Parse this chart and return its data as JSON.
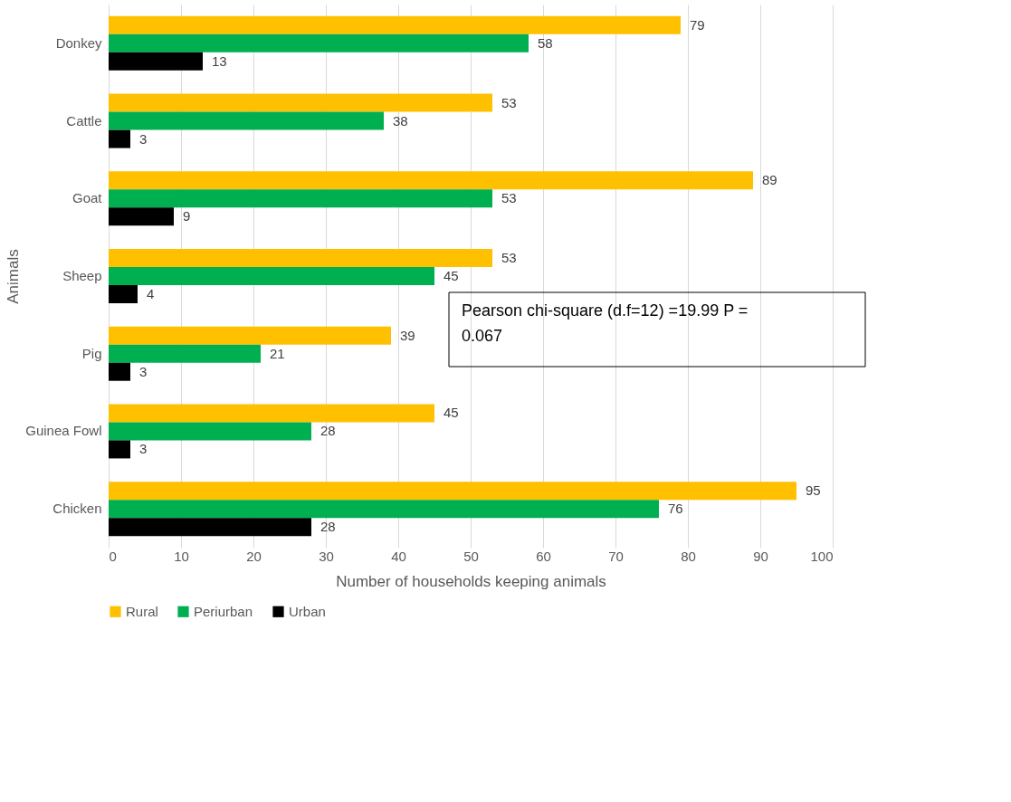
{
  "chart_data": {
    "type": "bar",
    "orientation": "horizontal",
    "xlabel": "Number of households keeping animals",
    "ylabel": "Animals",
    "categories": [
      "Donkey",
      "Cattle",
      "Goat",
      "Sheep",
      "Pig",
      "Guinea Fowl",
      "Chicken"
    ],
    "series": [
      {
        "name": "Rural",
        "color": "#ffc000",
        "values": [
          79,
          53,
          89,
          53,
          39,
          45,
          95
        ]
      },
      {
        "name": "Periurban",
        "color": "#00b050",
        "values": [
          58,
          38,
          53,
          45,
          21,
          28,
          76
        ]
      },
      {
        "name": "Urban",
        "color": "#000000",
        "values": [
          13,
          3,
          9,
          4,
          3,
          3,
          28
        ]
      }
    ],
    "xlim": [
      0,
      100
    ],
    "xticks": [
      0,
      10,
      20,
      30,
      40,
      50,
      60,
      70,
      80,
      90,
      100
    ],
    "grid": "x",
    "legend": "bottom",
    "data_labels": true,
    "annotations": [
      "Pearson chi-square (d.f=12) =19.99   P = 0.067"
    ]
  }
}
